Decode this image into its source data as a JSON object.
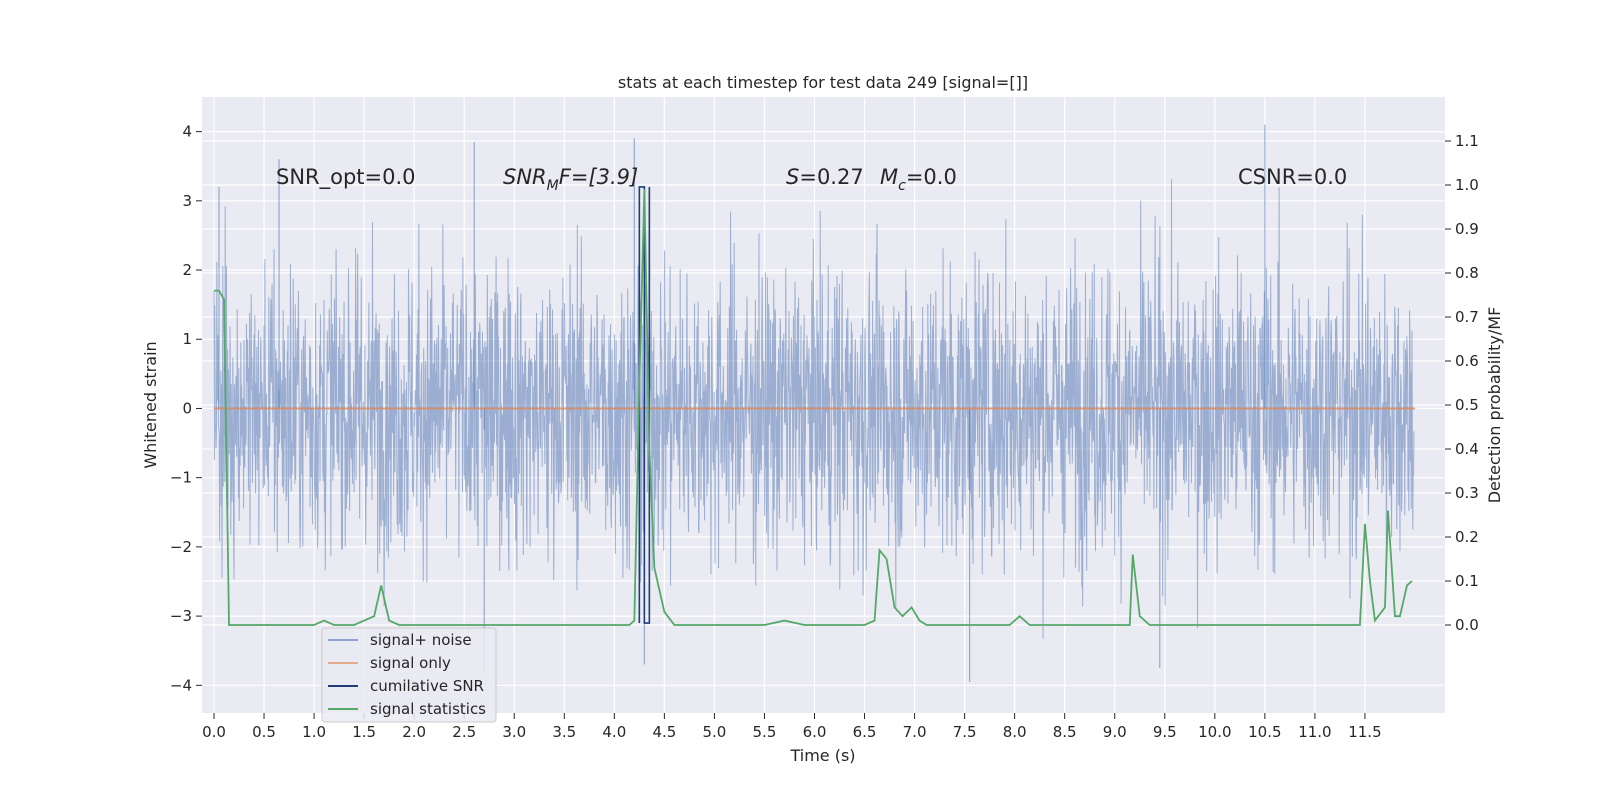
{
  "chart_data": {
    "type": "line",
    "title": "stats at each timestep for test data 249 [signal=[]]",
    "xlabel": "Time (s)",
    "ylabel_left": "Whitened strain",
    "ylabel_right": "Detection probability/MF",
    "xlim": [
      -0.12,
      12.3
    ],
    "ylim_left": [
      -4.4,
      4.5
    ],
    "ylim_right": [
      -0.2,
      1.2
    ],
    "xticks": [
      "0.0",
      "0.5",
      "1.0",
      "1.5",
      "2.0",
      "2.5",
      "3.0",
      "3.5",
      "4.0",
      "4.5",
      "5.0",
      "5.5",
      "6.0",
      "6.5",
      "7.0",
      "7.5",
      "8.0",
      "8.5",
      "9.0",
      "9.5",
      "10.0",
      "10.5",
      "11.0",
      "11.5"
    ],
    "yticks_left": [
      "−4",
      "−3",
      "−2",
      "−1",
      "0",
      "1",
      "2",
      "3",
      "4"
    ],
    "yticks_right": [
      "0.0",
      "0.1",
      "0.2",
      "0.3",
      "0.4",
      "0.5",
      "0.6",
      "0.7",
      "0.8",
      "0.9",
      "1.0",
      "1.1"
    ],
    "grid": true,
    "legend_placement": "lower-left",
    "annotations": {
      "snr_opt": "SNR_opt=0.0",
      "snr_mf_a": "SNR",
      "snr_mf_sub": "M",
      "snr_mf_b": "F=[3.9]",
      "s_a": "S",
      "s_b": "=0.27",
      "mc_a": "M",
      "mc_sub": "c",
      "mc_b": "=0.0",
      "csnr": "CSNR=0.0"
    },
    "series": [
      {
        "name": "signal+ noise",
        "color": "#4c72b0",
        "axis": "left",
        "description_range": [
          -3.9,
          4.1
        ],
        "peaks": [
          [
            0.05,
            3.2
          ],
          [
            0.65,
            3.6
          ],
          [
            2.6,
            3.85
          ],
          [
            4.2,
            3.9
          ],
          [
            4.3,
            -3.7
          ],
          [
            2.7,
            -3.8
          ],
          [
            7.55,
            -3.95
          ],
          [
            10.5,
            4.1
          ],
          [
            9.45,
            -3.75
          ]
        ]
      },
      {
        "name": "signal only",
        "color": "#dd8452",
        "axis": "left",
        "x": [
          0.0,
          12.0
        ],
        "values": [
          0.0,
          0.0
        ]
      },
      {
        "name": "cumilative SNR",
        "color": "#1f3d7a",
        "axis": "left",
        "x": [
          4.25,
          4.25,
          4.3,
          4.3,
          4.35,
          4.35
        ],
        "values": [
          -3.1,
          3.2,
          3.2,
          -3.1,
          -3.1,
          3.2
        ]
      },
      {
        "name": "signal statistics",
        "color": "#55a868",
        "axis": "right",
        "x": [
          0.0,
          0.05,
          0.1,
          0.15,
          0.2,
          0.3,
          0.5,
          0.8,
          1.0,
          1.1,
          1.2,
          1.3,
          1.4,
          1.5,
          1.6,
          1.67,
          1.75,
          1.85,
          2.0,
          3.0,
          4.0,
          4.15,
          4.2,
          4.25,
          4.3,
          4.35,
          4.4,
          4.5,
          4.6,
          4.7,
          4.9,
          5.5,
          5.7,
          5.9,
          6.5,
          6.6,
          6.65,
          6.72,
          6.8,
          6.88,
          6.97,
          7.05,
          7.12,
          7.2,
          7.3,
          7.5,
          7.95,
          8.05,
          8.15,
          8.5,
          9.0,
          9.15,
          9.18,
          9.25,
          9.35,
          9.5,
          9.8,
          10.0,
          10.5,
          10.7,
          11.0,
          11.4,
          11.45,
          11.5,
          11.55,
          11.6,
          11.7,
          11.73,
          11.8,
          11.85,
          11.92,
          11.97
        ],
        "values": [
          0.76,
          0.76,
          0.74,
          0.0,
          0.0,
          0.0,
          0.0,
          0.0,
          0.0,
          0.01,
          0.0,
          0.0,
          0.0,
          0.01,
          0.02,
          0.09,
          0.01,
          0.0,
          0.0,
          0.0,
          0.0,
          0.0,
          0.01,
          0.55,
          0.99,
          0.4,
          0.13,
          0.03,
          0.0,
          0.0,
          0.0,
          0.0,
          0.01,
          0.0,
          0.0,
          0.01,
          0.17,
          0.15,
          0.04,
          0.02,
          0.04,
          0.01,
          0.0,
          0.0,
          0.0,
          0.0,
          0.0,
          0.02,
          0.0,
          0.0,
          0.0,
          0.0,
          0.16,
          0.02,
          0.0,
          0.0,
          0.0,
          0.0,
          0.0,
          0.0,
          0.0,
          0.0,
          0.0,
          0.23,
          0.1,
          0.01,
          0.04,
          0.26,
          0.02,
          0.02,
          0.09,
          0.1
        ]
      }
    ]
  }
}
